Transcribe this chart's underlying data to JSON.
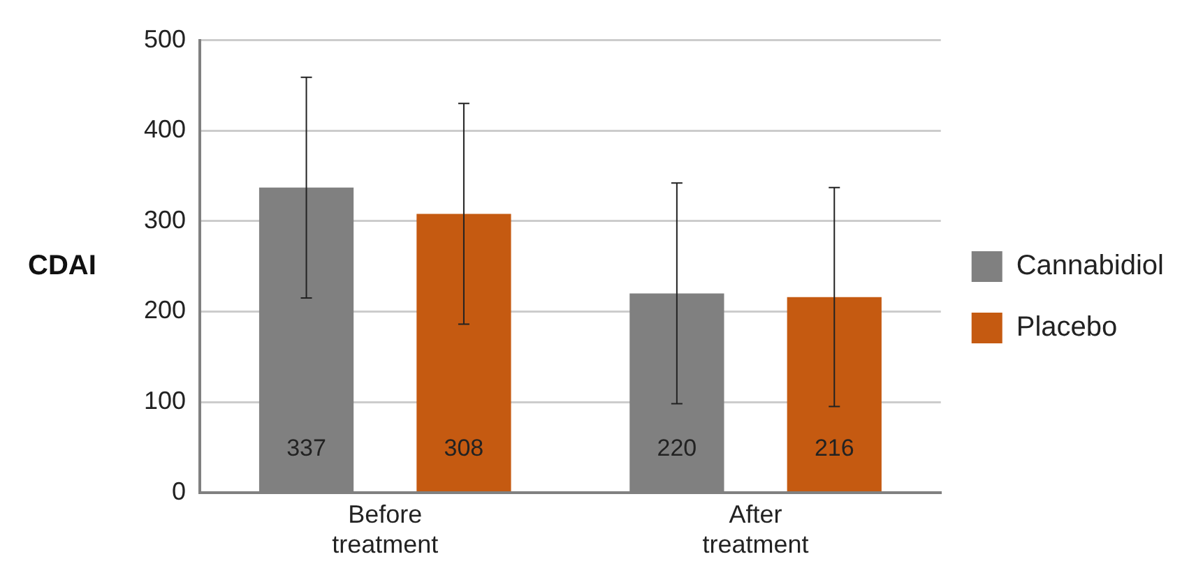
{
  "chart_data": {
    "type": "bar",
    "ylabel": "CDAI",
    "categories": [
      "Before treatment",
      "After treatment"
    ],
    "series": [
      {
        "name": "Cannabidiol",
        "color": "#808080",
        "values": [
          337,
          220
        ],
        "errors": [
          [
            215,
            459
          ],
          [
            98,
            342
          ]
        ]
      },
      {
        "name": "Placebo",
        "color": "#c55a11",
        "values": [
          308,
          216
        ],
        "errors": [
          [
            186,
            430
          ],
          [
            95,
            337
          ]
        ]
      }
    ],
    "ylim": [
      0,
      500
    ],
    "yticks": [
      0,
      100,
      200,
      300,
      400,
      500
    ],
    "grid": "y",
    "legend": "right",
    "data_labels": true
  }
}
